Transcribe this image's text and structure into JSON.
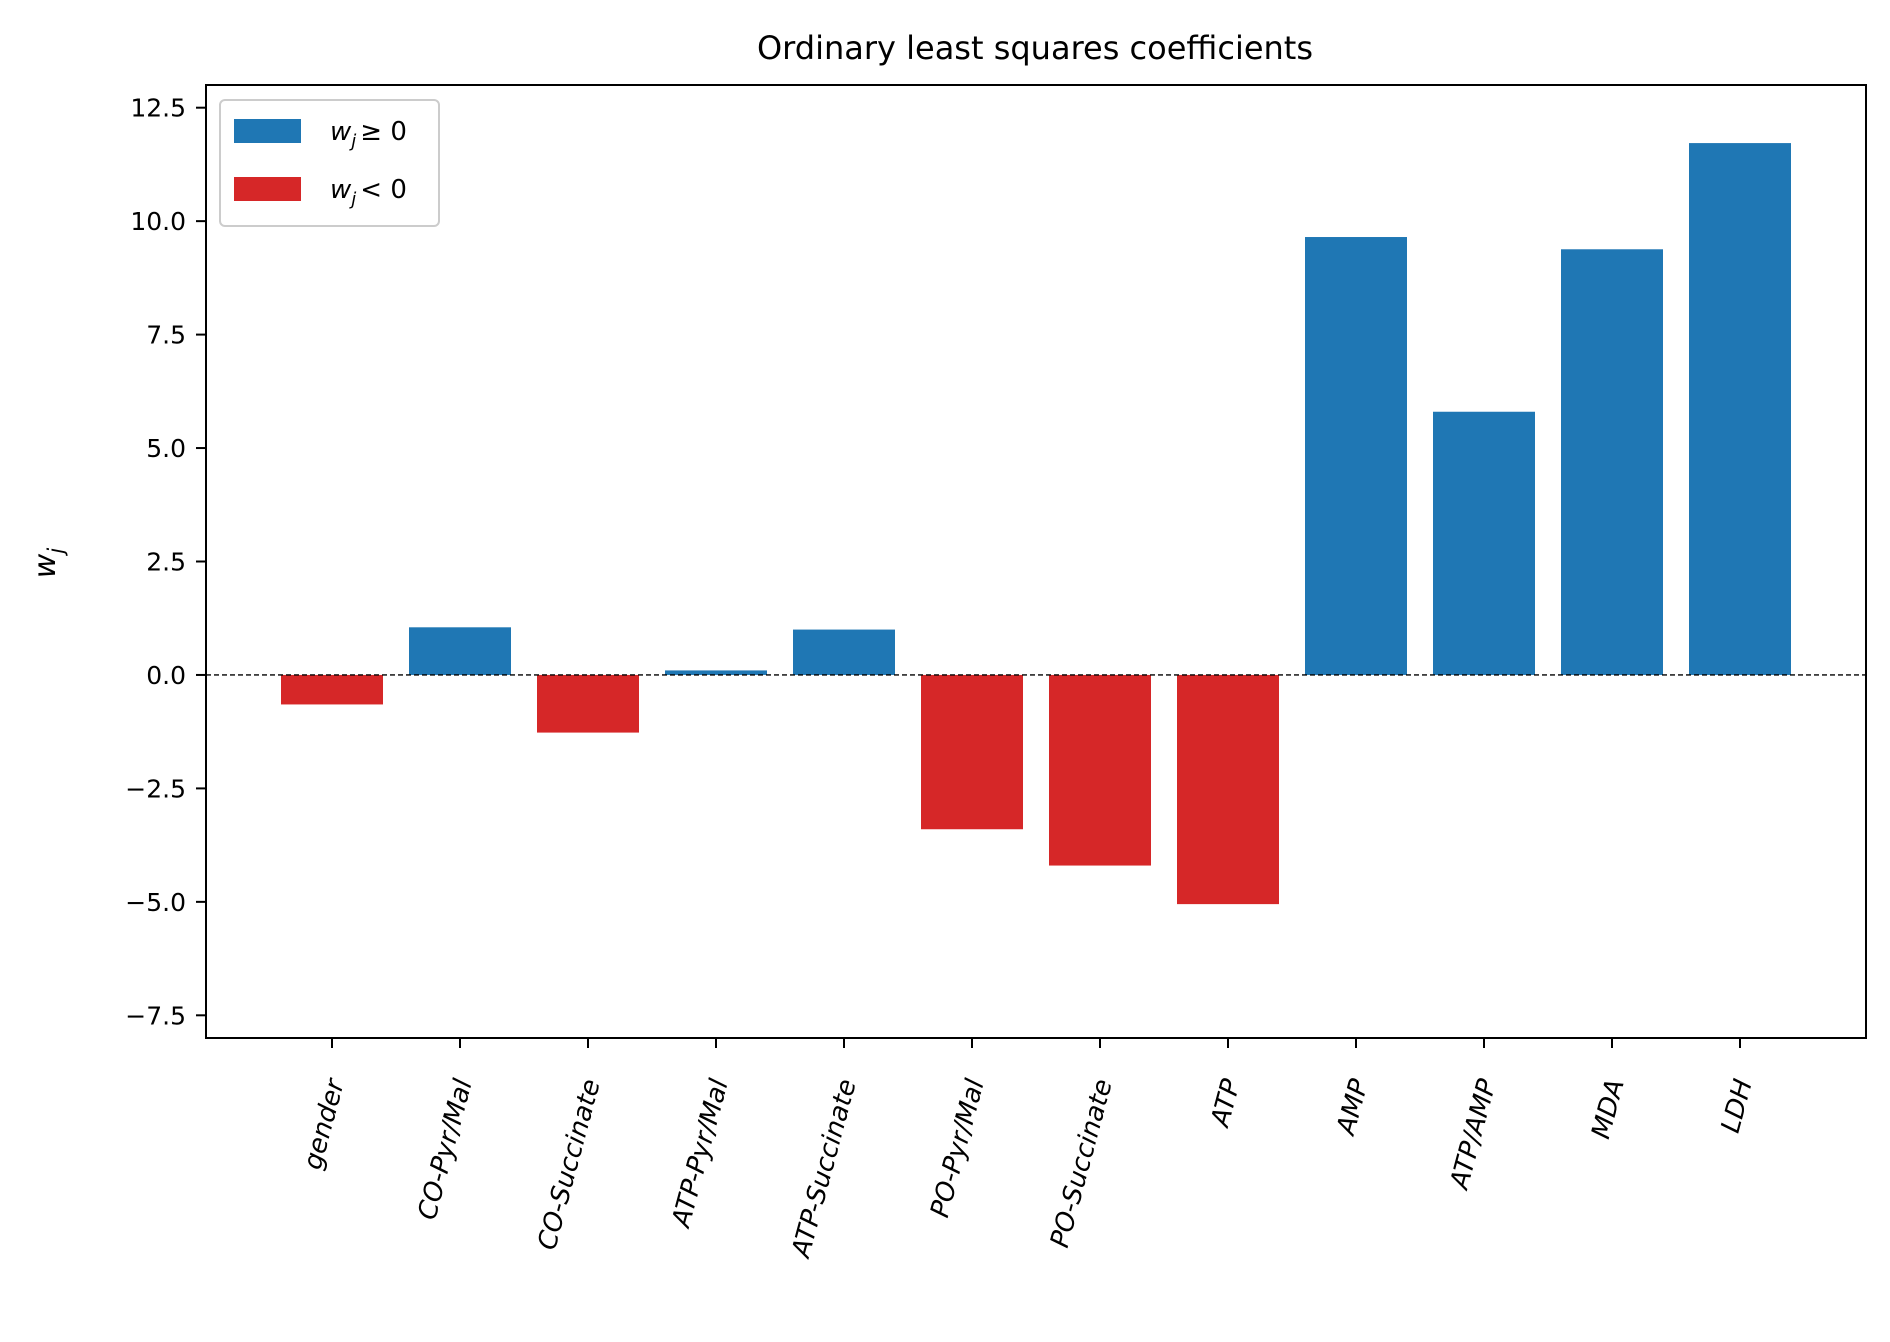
{
  "chart_data": {
    "type": "bar",
    "title": "Ordinary least squares coefficients",
    "xlabel": "",
    "ylabel": "w_j",
    "categories": [
      "gender",
      "CO-Pyr/Mal",
      "CO-Succinate",
      "ATP-Pyr/Mal",
      "ATP-Succinate",
      "PO-Pyr/Mal",
      "PO-Succinate",
      "ATP",
      "AMP",
      "ATP/AMP",
      "MDA",
      "LDH"
    ],
    "values": [
      -0.65,
      1.05,
      -1.27,
      0.1,
      1.0,
      -3.4,
      -4.2,
      -5.05,
      9.65,
      5.8,
      9.38,
      11.72
    ],
    "ylim": [
      -8.0,
      13.0
    ],
    "yticks": [
      -7.5,
      -5.0,
      -2.5,
      0.0,
      2.5,
      5.0,
      7.5,
      10.0,
      12.5
    ],
    "ytick_labels": [
      "−7.5",
      "−5.0",
      "−2.5",
      "0.0",
      "2.5",
      "5.0",
      "7.5",
      "10.0",
      "12.5"
    ],
    "zero_line": "dashed",
    "grid": false,
    "legend": {
      "placement": "top-left",
      "entries": [
        {
          "label_var": "w",
          "label_sub": "j",
          "label_op": "≥ 0",
          "color": "#1f77b4"
        },
        {
          "label_var": "w",
          "label_sub": "j",
          "label_op": "< 0",
          "color": "#d62728"
        }
      ]
    },
    "colors": {
      "positive": "#1f77b4",
      "negative": "#d62728"
    }
  }
}
